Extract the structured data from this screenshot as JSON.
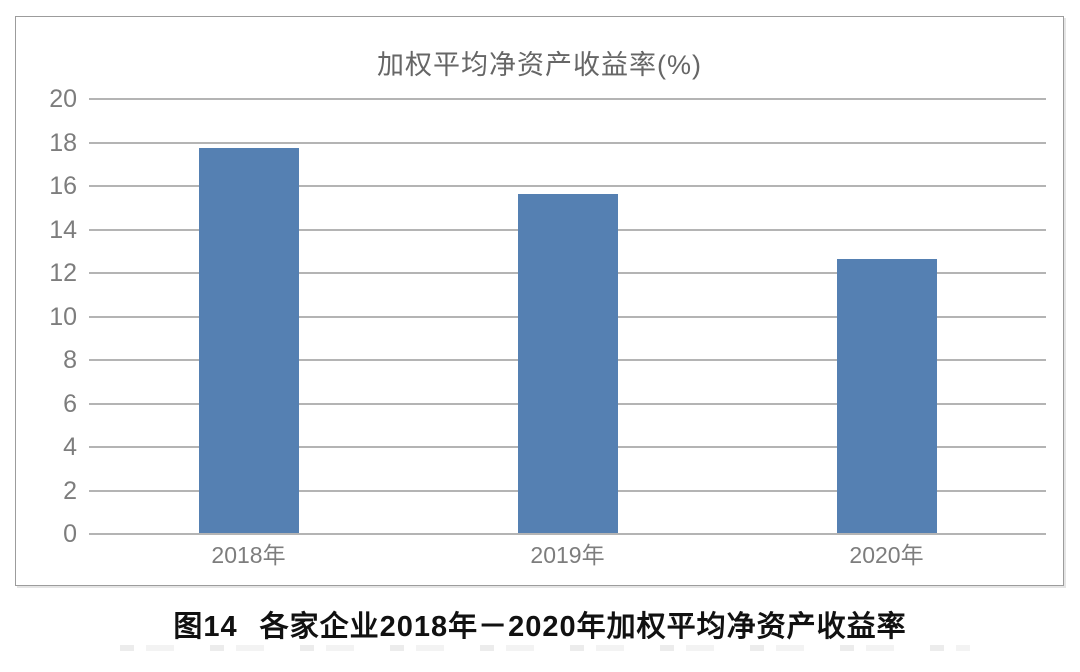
{
  "chart_data": {
    "type": "bar",
    "title": "加权平均净资产收益率(%)",
    "categories": [
      "2018年",
      "2019年",
      "2020年"
    ],
    "values": [
      17.7,
      15.6,
      12.6
    ],
    "xlabel": "",
    "ylabel": "",
    "ylim": [
      0,
      20
    ],
    "ytick_step": 2,
    "yticks": [
      0,
      2,
      4,
      6,
      8,
      10,
      12,
      14,
      16,
      18,
      20
    ],
    "grid": true,
    "legend": "none",
    "bar_color": "#5580B2"
  },
  "caption": {
    "label": "图14",
    "text": "各家企业2018年－2020年加权平均净资产收益率"
  },
  "colors": {
    "bar": "#5580B2",
    "gridline": "#b4b4b4",
    "axis_text": "#7d7d7d",
    "title_text": "#666666",
    "caption_text": "#111111",
    "panel_border": "#9c9c9c",
    "background": "#ffffff"
  }
}
